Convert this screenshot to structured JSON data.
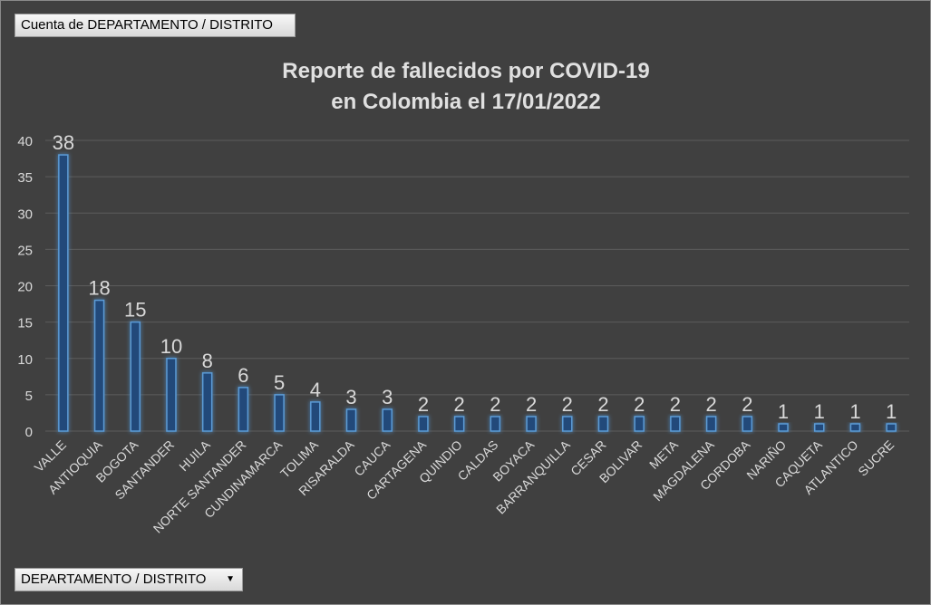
{
  "pivot": {
    "value_field_label": "Cuenta de DEPARTAMENTO / DISTRITO",
    "axis_field_label": "DEPARTAMENTO / DISTRITO",
    "axis_dropdown_icon": "dropdown-arrow-icon"
  },
  "chart_data": {
    "type": "bar",
    "title": "Reporte de fallecidos por COVID-19",
    "subtitle": "en Colombia el 17/01/2022",
    "xlabel": "",
    "ylabel": "",
    "ylim": [
      0,
      40
    ],
    "yticks": [
      0,
      5,
      10,
      15,
      20,
      25,
      30,
      35,
      40
    ],
    "grid": true,
    "legend": "none",
    "categories": [
      "VALLE",
      "ANTIOQUIA",
      "BOGOTA",
      "SANTANDER",
      "HUILA",
      "NORTE SANTANDER",
      "CUNDINAMARCA",
      "TOLIMA",
      "RISARALDA",
      "CAUCA",
      "CARTAGENA",
      "QUINDIO",
      "CALDAS",
      "BOYACA",
      "BARRANQUILLA",
      "CESAR",
      "BOLIVAR",
      "META",
      "MAGDALENA",
      "CORDOBA",
      "NARIÑO",
      "CAQUETA",
      "ATLANTICO",
      "SUCRE"
    ],
    "values": [
      38,
      18,
      15,
      10,
      8,
      6,
      5,
      4,
      3,
      3,
      2,
      2,
      2,
      2,
      2,
      2,
      2,
      2,
      2,
      2,
      1,
      1,
      1,
      1
    ],
    "colors": {
      "bar_fill": "#23497a",
      "bar_stroke": "#5b9bd5",
      "glow": "#4a90e2",
      "grid": "#5c5c5c",
      "text": "#d9d9d9",
      "title": "#e0e0e0"
    }
  }
}
